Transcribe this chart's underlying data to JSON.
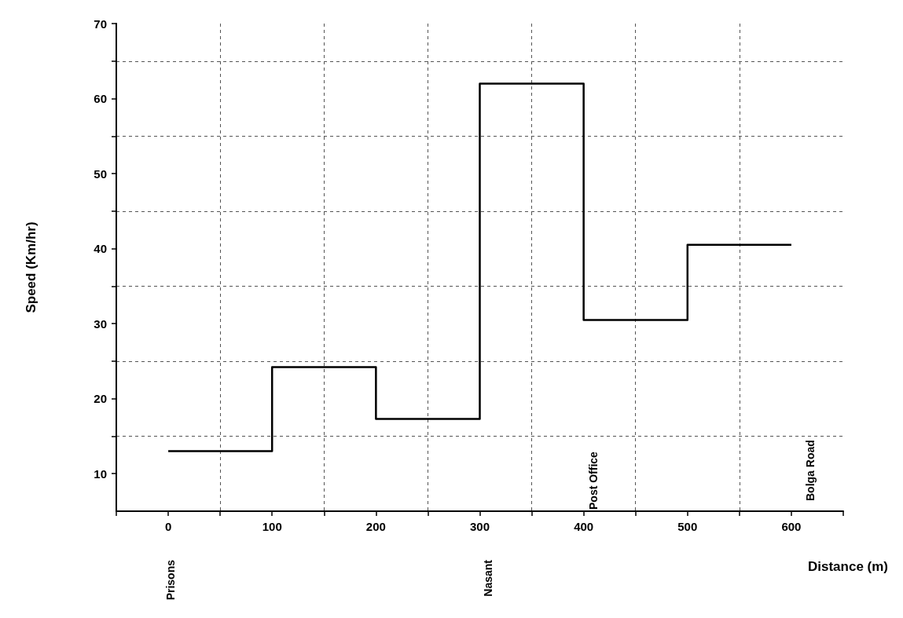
{
  "chart_data": {
    "type": "step",
    "xlabel": "Distance (m)",
    "ylabel": "Speed (Km/hr)",
    "x": [
      0,
      100,
      200,
      300,
      400,
      500,
      600
    ],
    "series": [
      {
        "color": "#000000",
        "values": [
          13,
          24.2,
          17.3,
          62,
          30.5,
          40.5,
          40.5
        ]
      }
    ],
    "xlim": [
      -50,
      650
    ],
    "xticks": [
      {
        "value": -50,
        "label": null
      },
      0,
      {
        "value": 50,
        "label": null
      },
      100,
      {
        "value": 150,
        "label": null
      },
      200,
      {
        "value": 250,
        "label": null
      },
      300,
      {
        "value": 350,
        "label": null
      },
      400,
      {
        "value": 450,
        "label": null
      },
      500,
      {
        "value": 550,
        "label": null
      },
      600,
      {
        "value": 650,
        "label": null
      }
    ],
    "ylim": [
      5,
      70
    ],
    "yticks": [
      10,
      {
        "value": 15,
        "label": null
      },
      20,
      {
        "value": 25,
        "label": null
      },
      30,
      {
        "value": 35,
        "label": null
      },
      40,
      {
        "value": 45,
        "label": null
      },
      50,
      {
        "value": 55,
        "label": null
      },
      60,
      {
        "value": 65,
        "label": null
      },
      70
    ],
    "grid": true,
    "marker": "none",
    "line_style": "solid",
    "annotations": [
      "Prisons",
      "Nasant",
      "Post Office",
      "Bolga Road"
    ]
  }
}
